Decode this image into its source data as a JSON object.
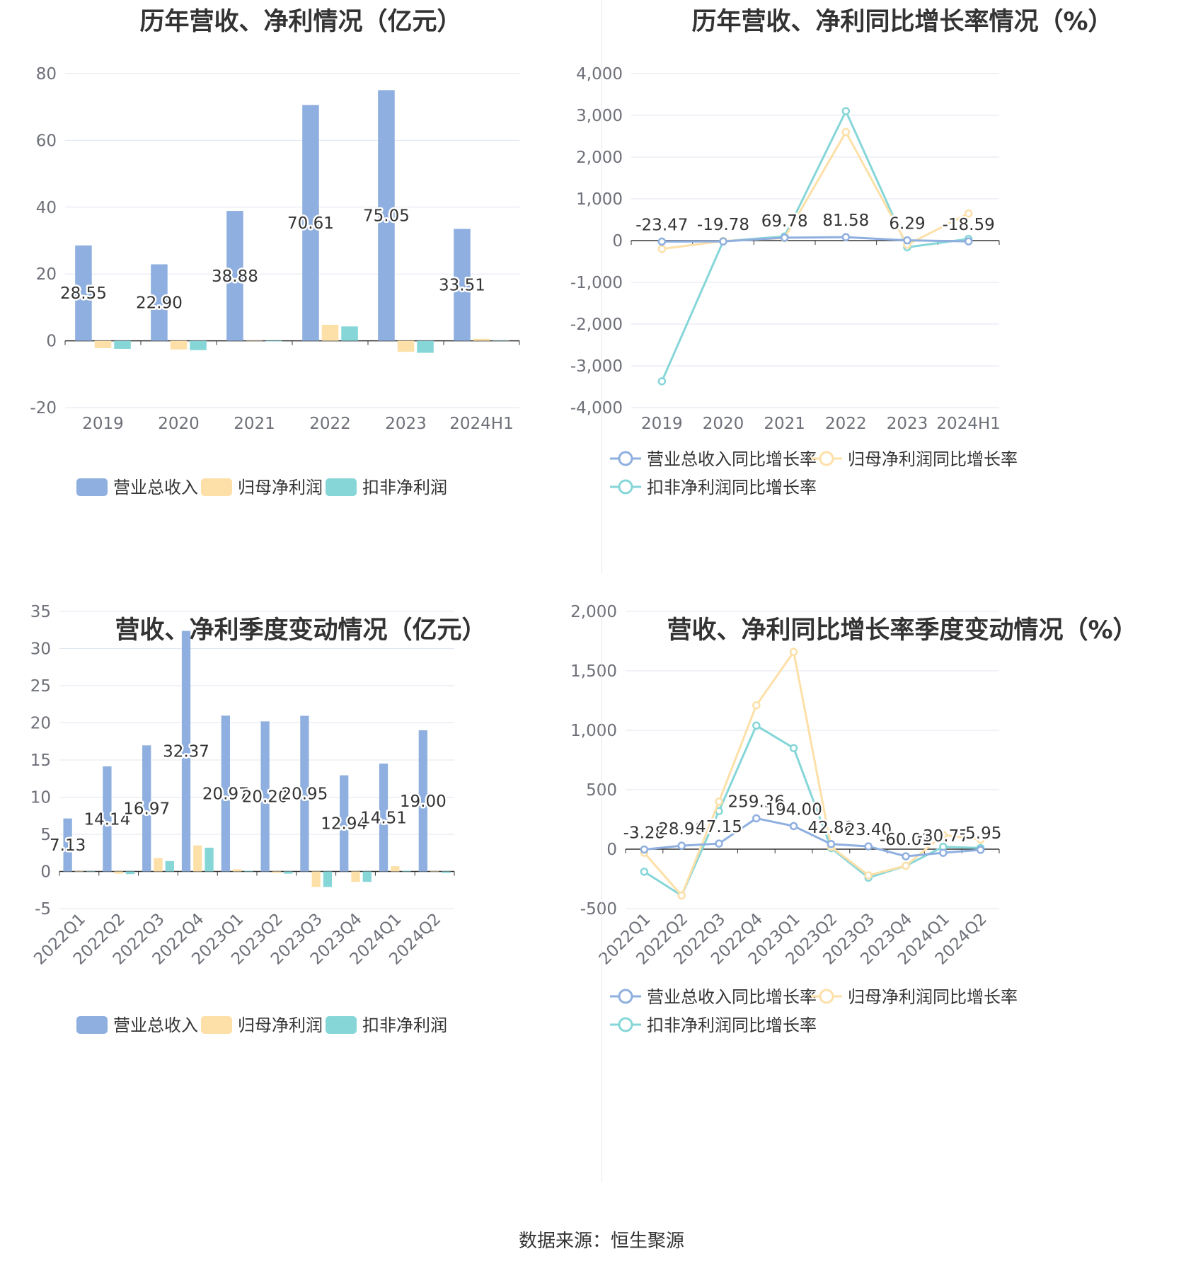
{
  "colors": {
    "revenue": "#8eafdf",
    "net_profit": "#fde0a8",
    "deducted_profit": "#86d6d8",
    "grid": "#e0e6f1",
    "axis": "#6e7079",
    "zero": "#333333"
  },
  "source": "数据来源：恒生聚源",
  "chart_data": [
    {
      "id": "annual-amount",
      "type": "bar",
      "title": "历年营收、净利情况（亿元）",
      "categories": [
        "2019",
        "2020",
        "2021",
        "2022",
        "2023",
        "2024H1"
      ],
      "ylim": [
        -20,
        80
      ],
      "yticks": [
        -20,
        0,
        20,
        40,
        60,
        80
      ],
      "series": [
        {
          "name": "营业总收入",
          "color": "#8eafdf",
          "values": [
            28.55,
            22.9,
            38.88,
            70.61,
            75.05,
            33.51
          ],
          "labels": [
            "28.55",
            "22.90",
            "38.88",
            "70.61",
            "75.05",
            "33.51"
          ]
        },
        {
          "name": "归母净利润",
          "color": "#fde0a8",
          "values": [
            -2.2,
            -2.6,
            -0.1,
            4.8,
            -3.3,
            0.6
          ]
        },
        {
          "name": "扣非净利润",
          "color": "#86d6d8",
          "values": [
            -2.4,
            -2.8,
            -0.2,
            4.3,
            -3.6,
            0.05
          ]
        }
      ],
      "grid": true,
      "legend": "bottom"
    },
    {
      "id": "annual-growth",
      "type": "line",
      "title": "历年营收、净利同比增长率情况（%）",
      "categories": [
        "2019",
        "2020",
        "2021",
        "2022",
        "2023",
        "2024H1"
      ],
      "ylim": [
        -4000,
        4000
      ],
      "yticks": [
        -4000,
        -3000,
        -2000,
        -1000,
        0,
        1000,
        2000,
        3000,
        4000
      ],
      "ytick_labels": [
        "-4,000",
        "-3,000",
        "-2,000",
        "-1,000",
        "0",
        "1,000",
        "2,000",
        "3,000",
        "4,000"
      ],
      "series": [
        {
          "name": "营业总收入同比增长率",
          "color": "#8eafdf",
          "values": [
            -23.47,
            -19.78,
            69.78,
            81.58,
            6.29,
            -18.59
          ],
          "labels": [
            "-23.47",
            "-19.78",
            "69.78",
            "81.58",
            "6.29",
            "-18.59"
          ]
        },
        {
          "name": "归母净利润同比增长率",
          "color": "#fde0a8",
          "values": [
            -200,
            -10,
            60,
            2600,
            -100,
            650
          ]
        },
        {
          "name": "扣非净利润同比增长率",
          "color": "#86d6d8",
          "values": [
            -3370,
            -15,
            100,
            3100,
            -160,
            40
          ]
        }
      ],
      "grid": true,
      "legend": "bottom"
    },
    {
      "id": "quarterly-amount",
      "type": "bar",
      "title": "营收、净利季度变动情况（亿元）",
      "categories": [
        "2022Q1",
        "2022Q2",
        "2022Q3",
        "2022Q4",
        "2023Q1",
        "2023Q2",
        "2023Q3",
        "2023Q4",
        "2024Q1",
        "2024Q2"
      ],
      "ylim": [
        -5,
        35
      ],
      "yticks": [
        -5,
        0,
        5,
        10,
        15,
        20,
        25,
        30,
        35
      ],
      "series": [
        {
          "name": "营业总收入",
          "color": "#8eafdf",
          "values": [
            7.13,
            14.14,
            16.97,
            32.37,
            20.97,
            20.2,
            20.95,
            12.94,
            14.51,
            19.0
          ],
          "labels": [
            "7.13",
            "14.14",
            "16.97",
            "32.37",
            "20.97",
            "20.20",
            "20.95",
            "12.94",
            "14.51",
            "19.00"
          ]
        },
        {
          "name": "归母净利润",
          "color": "#fde0a8",
          "values": [
            -0.05,
            -0.3,
            1.8,
            3.5,
            0.3,
            -0.2,
            -2.1,
            -1.4,
            0.7,
            0.05
          ]
        },
        {
          "name": "扣非净利润",
          "color": "#86d6d8",
          "values": [
            -0.05,
            -0.35,
            1.4,
            3.2,
            0.1,
            -0.3,
            -2.1,
            -1.4,
            0.1,
            -0.2
          ]
        }
      ],
      "grid": true,
      "legend": "bottom"
    },
    {
      "id": "quarterly-growth",
      "type": "line",
      "title": "营收、净利同比增长率季度变动情况（%）",
      "categories": [
        "2022Q1",
        "2022Q2",
        "2022Q3",
        "2022Q4",
        "2023Q1",
        "2023Q2",
        "2023Q3",
        "2023Q4",
        "2024Q1",
        "2024Q2"
      ],
      "ylim": [
        -500,
        2000
      ],
      "yticks": [
        -500,
        0,
        500,
        1000,
        1500,
        2000
      ],
      "ytick_labels": [
        "-500",
        "0",
        "500",
        "1,000",
        "1,500",
        "2,000"
      ],
      "series": [
        {
          "name": "营业总收入同比增长率",
          "color": "#8eafdf",
          "values": [
            -3.28,
            28.9,
            47.15,
            259.26,
            194.0,
            42.88,
            23.4,
            -60.01,
            -30.77,
            -5.95
          ],
          "labels": [
            "-3.28",
            "28.90",
            "47.15",
            "259.26",
            "194.00",
            "42.88",
            "23.40",
            "-60.01",
            "-30.77",
            "-5.95"
          ]
        },
        {
          "name": "归母净利润同比增长率",
          "color": "#fde0a8",
          "values": [
            -30,
            -390,
            400,
            1210,
            1660,
            20,
            -220,
            -140,
            120,
            80
          ]
        },
        {
          "name": "扣非净利润同比增长率",
          "color": "#86d6d8",
          "values": [
            -190,
            -390,
            320,
            1040,
            850,
            10,
            -240,
            -140,
            20,
            10
          ]
        }
      ],
      "grid": true,
      "legend": "bottom"
    }
  ]
}
